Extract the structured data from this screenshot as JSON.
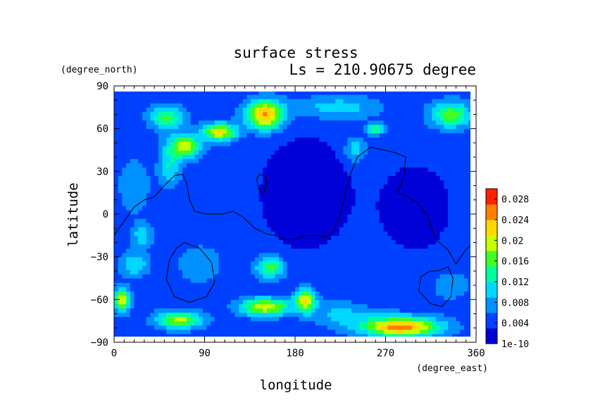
{
  "chart_data": {
    "type": "heatmap",
    "title": "surface stress",
    "subtitle": "Ls = 210.90675 degree",
    "xlabel": "longitude",
    "ylabel": "latitude",
    "x_units": "(degree_east)",
    "y_units": "(degree_north)",
    "xlim": [
      0,
      360
    ],
    "ylim": [
      -90,
      90
    ],
    "x_ticks": [
      0,
      90,
      180,
      270,
      360
    ],
    "y_ticks": [
      90,
      60,
      30,
      0,
      -30,
      -60,
      -90
    ],
    "x_tick_labels": [
      "0",
      "90",
      "180",
      "270",
      "360"
    ],
    "y_tick_labels": [
      "90",
      "60",
      "30",
      "0",
      "−30",
      "−60",
      "−90"
    ],
    "colorbar": {
      "range": [
        0,
        0.03
      ],
      "tick_labels": [
        "0.028",
        "0.024",
        "0.02",
        "0.016",
        "0.012",
        "0.008",
        "0.004",
        "1e-10"
      ],
      "tick_values": [
        0.028,
        0.024,
        0.02,
        0.016,
        0.012,
        0.008,
        0.004,
        0
      ],
      "colors": [
        "#0000d8",
        "#0040ff",
        "#0090ff",
        "#00d8ff",
        "#00ffa0",
        "#40ff20",
        "#c8ff00",
        "#ffd800",
        "#ff8000",
        "#ff2000"
      ]
    },
    "background_value": 0.0045,
    "field_blobs": [
      {
        "lon": 52,
        "lat": 68,
        "value": 0.016,
        "rlon": 16,
        "rlat": 8
      },
      {
        "lon": 150,
        "lat": 70,
        "value": 0.025,
        "rlon": 18,
        "rlat": 10
      },
      {
        "lon": 222,
        "lat": 75,
        "value": 0.011,
        "rlon": 40,
        "rlat": 8
      },
      {
        "lon": 335,
        "lat": 70,
        "value": 0.017,
        "rlon": 20,
        "rlat": 9
      },
      {
        "lon": 260,
        "lat": 60,
        "value": 0.015,
        "rlon": 8,
        "rlat": 4
      },
      {
        "lon": 105,
        "lat": 58,
        "value": 0.022,
        "rlon": 16,
        "rlat": 6
      },
      {
        "lon": 70,
        "lat": 48,
        "value": 0.02,
        "rlon": 16,
        "rlat": 8
      },
      {
        "lon": 55,
        "lat": 33,
        "value": 0.012,
        "rlon": 10,
        "rlat": 12
      },
      {
        "lon": 20,
        "lat": 20,
        "value": 0.009,
        "rlon": 14,
        "rlat": 18
      },
      {
        "lon": 28,
        "lat": -15,
        "value": 0.011,
        "rlon": 10,
        "rlat": 8
      },
      {
        "lon": 20,
        "lat": -35,
        "value": 0.012,
        "rlon": 14,
        "rlat": 8
      },
      {
        "lon": 155,
        "lat": -37,
        "value": 0.016,
        "rlon": 14,
        "rlat": 8
      },
      {
        "lon": 85,
        "lat": -35,
        "value": 0.009,
        "rlon": 20,
        "rlat": 12
      },
      {
        "lon": 8,
        "lat": -60,
        "value": 0.02,
        "rlon": 8,
        "rlat": 8
      },
      {
        "lon": 150,
        "lat": -65,
        "value": 0.021,
        "rlon": 24,
        "rlat": 6
      },
      {
        "lon": 190,
        "lat": -60,
        "value": 0.021,
        "rlon": 10,
        "rlat": 8
      },
      {
        "lon": 65,
        "lat": -74,
        "value": 0.019,
        "rlon": 22,
        "rlat": 6
      },
      {
        "lon": 285,
        "lat": -79,
        "value": 0.026,
        "rlon": 38,
        "rlat": 7
      },
      {
        "lon": 335,
        "lat": -50,
        "value": 0.008,
        "rlon": 20,
        "rlat": 10
      },
      {
        "lon": 225,
        "lat": -70,
        "value": 0.01,
        "rlon": 30,
        "rlat": 8
      },
      {
        "lon": 240,
        "lat": 45,
        "value": 0.012,
        "rlon": 10,
        "rlat": 8
      }
    ],
    "low_zones": [
      {
        "lon": 190,
        "lat": 15,
        "value": 0.0005,
        "rlon": 45,
        "rlat": 40
      },
      {
        "lon": 300,
        "lat": 5,
        "value": 0.0015,
        "rlon": 40,
        "rlat": 35
      }
    ],
    "contours": [
      [
        [
          0,
          -15
        ],
        [
          10,
          -5
        ],
        [
          20,
          5
        ],
        [
          30,
          10
        ],
        [
          40,
          12
        ],
        [
          50,
          20
        ],
        [
          60,
          27
        ],
        [
          68,
          28
        ],
        [
          72,
          22
        ],
        [
          75,
          10
        ],
        [
          80,
          2
        ],
        [
          92,
          0
        ],
        [
          108,
          0
        ],
        [
          118,
          2
        ],
        [
          128,
          -2
        ],
        [
          140,
          -10
        ],
        [
          152,
          -14
        ],
        [
          160,
          -15
        ],
        [
          170,
          -18
        ],
        [
          180,
          -18
        ],
        [
          190,
          -15
        ],
        [
          200,
          -15
        ],
        [
          210,
          -16
        ],
        [
          218,
          -12
        ],
        [
          225,
          0
        ],
        [
          230,
          15
        ],
        [
          235,
          28
        ],
        [
          242,
          40
        ],
        [
          255,
          47
        ],
        [
          268,
          45
        ],
        [
          280,
          43
        ],
        [
          290,
          40
        ],
        [
          288,
          25
        ],
        [
          282,
          15
        ],
        [
          292,
          12
        ],
        [
          302,
          8
        ],
        [
          312,
          -2
        ],
        [
          320,
          -18
        ],
        [
          332,
          -25
        ],
        [
          340,
          -35
        ],
        [
          350,
          -25
        ],
        [
          360,
          -18
        ]
      ],
      [
        [
          145,
          28
        ],
        [
          151,
          26
        ],
        [
          152,
          18
        ],
        [
          148,
          15
        ],
        [
          143,
          18
        ],
        [
          142,
          25
        ],
        [
          145,
          28
        ]
      ],
      [
        [
          70,
          -20
        ],
        [
          85,
          -24
        ],
        [
          97,
          -34
        ],
        [
          100,
          -48
        ],
        [
          92,
          -58
        ],
        [
          75,
          -62
        ],
        [
          60,
          -58
        ],
        [
          52,
          -46
        ],
        [
          55,
          -32
        ],
        [
          62,
          -24
        ],
        [
          70,
          -20
        ]
      ],
      [
        [
          322,
          -40
        ],
        [
          332,
          -37
        ],
        [
          337,
          -45
        ],
        [
          335,
          -58
        ],
        [
          326,
          -65
        ],
        [
          315,
          -63
        ],
        [
          303,
          -54
        ],
        [
          305,
          -44
        ],
        [
          314,
          -40
        ],
        [
          322,
          -40
        ]
      ]
    ]
  }
}
